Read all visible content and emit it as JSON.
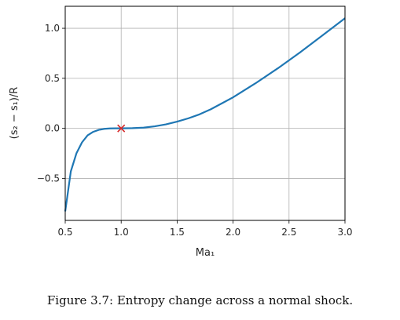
{
  "chart_data": {
    "type": "line",
    "xlabel": "Ma₁",
    "ylabel": "(s₂ − s₁)/R",
    "xlim": [
      0.5,
      3.0
    ],
    "ylim": [
      -0.92,
      1.22
    ],
    "xticks": [
      0.5,
      1.0,
      1.5,
      2.0,
      2.5,
      3.0
    ],
    "xtick_labels": [
      "0.5",
      "1.0",
      "1.5",
      "2.0",
      "2.5",
      "3.0"
    ],
    "yticks": [
      -0.5,
      0.0,
      0.5,
      1.0
    ],
    "ytick_labels": [
      "−0.5",
      "0.0",
      "0.5",
      "1.0"
    ],
    "grid": true,
    "series": [
      {
        "color": "#1f77b4",
        "x": [
          0.5,
          0.55,
          0.6,
          0.65,
          0.7,
          0.75,
          0.8,
          0.85,
          0.9,
          0.95,
          1.0,
          1.1,
          1.2,
          1.3,
          1.4,
          1.5,
          1.6,
          1.7,
          1.8,
          1.9,
          2.0,
          2.2,
          2.4,
          2.6,
          2.8,
          3.0
        ],
        "y": [
          -0.83,
          -0.43,
          -0.25,
          -0.14,
          -0.07,
          -0.035,
          -0.015,
          -0.005,
          -0.001,
          0.0,
          0.0,
          0.002,
          0.007,
          0.02,
          0.04,
          0.067,
          0.1,
          0.14,
          0.19,
          0.25,
          0.31,
          0.45,
          0.6,
          0.76,
          0.93,
          1.1
        ]
      }
    ],
    "marker": {
      "x": 1.0,
      "y": 0.0,
      "symbol": "x",
      "color": "#d62728"
    }
  },
  "caption": "Figure 3.7: Entropy change across a normal shock."
}
